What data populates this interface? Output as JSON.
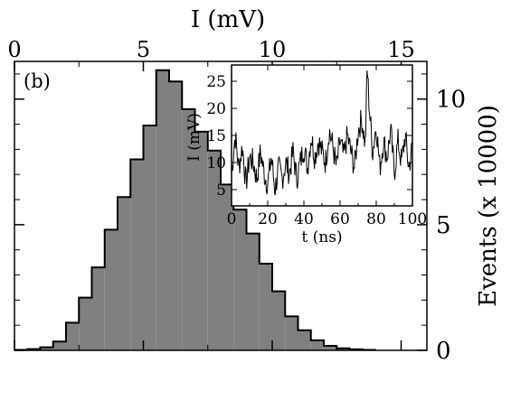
{
  "chart_data": [
    {
      "type": "histogram",
      "panel_label": "(b)",
      "xlabel": "I (mV)",
      "ylabel": "Events (x 10000)",
      "xlim": [
        0,
        16
      ],
      "ylim": [
        0,
        11.5
      ],
      "x_ticks": [
        0,
        5,
        10,
        15
      ],
      "y_ticks": [
        0,
        5,
        10
      ],
      "x_axis_position": "top",
      "y_axis_position": "right",
      "fill_color": "#808080",
      "bin_width": 0.5,
      "bins_start": [
        0,
        0.5,
        1,
        1.5,
        2,
        2.5,
        3,
        3.5,
        4,
        4.5,
        5,
        5.5,
        6,
        6.5,
        7,
        7.5,
        8,
        8.5,
        9,
        9.5,
        10,
        10.5,
        11,
        11.5,
        12,
        12.5,
        13,
        13.5
      ],
      "values": [
        0.02,
        0.05,
        0.12,
        0.35,
        1.1,
        2.1,
        3.3,
        4.8,
        6.1,
        7.6,
        8.95,
        11.15,
        10.7,
        9.6,
        8.7,
        7.95,
        6.6,
        5.6,
        4.65,
        3.45,
        2.35,
        1.35,
        0.8,
        0.4,
        0.18,
        0.08,
        0.04,
        0.02
      ]
    },
    {
      "type": "line",
      "inset": true,
      "xlabel": "t  (ns)",
      "ylabel": "I (mV)",
      "xlim": [
        0,
        100
      ],
      "ylim": [
        2,
        28
      ],
      "x_ticks": [
        0,
        20,
        40,
        60,
        80,
        100
      ],
      "y_ticks": [
        5,
        10,
        15,
        20,
        25
      ],
      "x": [
        0,
        2,
        4,
        6,
        8,
        10,
        12,
        14,
        16,
        18,
        20,
        22,
        24,
        26,
        28,
        30,
        32,
        34,
        36,
        38,
        40,
        42,
        44,
        46,
        48,
        50,
        52,
        54,
        56,
        58,
        60,
        62,
        64,
        66,
        68,
        70,
        72,
        74,
        75,
        76,
        78,
        80,
        82,
        84,
        86,
        88,
        90,
        92,
        94,
        96,
        98,
        100
      ],
      "y": [
        8,
        15,
        9,
        13,
        6,
        11,
        10,
        7,
        12,
        8,
        6,
        11,
        5,
        9,
        7,
        10,
        8,
        12,
        7,
        10,
        13,
        9,
        15,
        11,
        14,
        12,
        10,
        16,
        13,
        9,
        14,
        11,
        15,
        12,
        9,
        16,
        18,
        13,
        28,
        21,
        12,
        17,
        9,
        14,
        11,
        16,
        8,
        14,
        10,
        15,
        9,
        13
      ]
    }
  ]
}
